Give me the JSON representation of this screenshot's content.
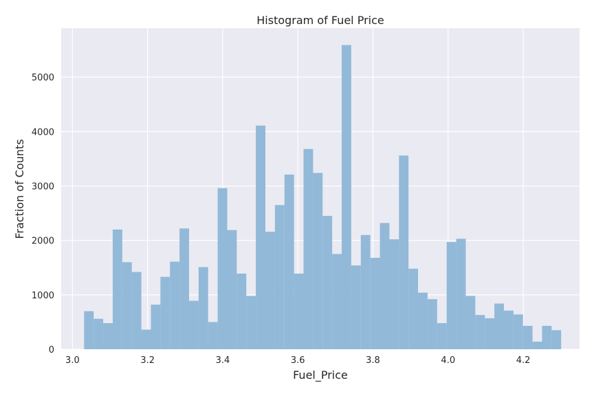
{
  "chart_data": {
    "type": "bar",
    "title": "Histogram of Fuel Price",
    "xlabel": "Fuel_Price",
    "ylabel": "Fraction of Counts",
    "xlim": [
      2.97,
      4.35
    ],
    "ylim": [
      0,
      5900
    ],
    "xticks": [
      "3.0",
      "3.2",
      "3.4",
      "3.6",
      "3.8",
      "4.0",
      "4.2"
    ],
    "yticks": [
      "0",
      "1000",
      "2000",
      "3000",
      "4000",
      "5000"
    ],
    "grid": true,
    "bar_color": "#92b9d8",
    "background_color": "#eaeaf2",
    "bin_start": 3.031,
    "bin_end": 4.301,
    "values": [
      700,
      560,
      480,
      2200,
      1600,
      1420,
      360,
      820,
      1330,
      1610,
      2220,
      890,
      1510,
      500,
      2960,
      2190,
      1390,
      980,
      4110,
      2160,
      2650,
      3210,
      1390,
      3680,
      3240,
      2450,
      1750,
      5590,
      1540,
      2100,
      1680,
      2320,
      2020,
      3560,
      1480,
      1040,
      920,
      480,
      1970,
      2030,
      980,
      630,
      570,
      840,
      710,
      640,
      430,
      140,
      430,
      350
    ]
  }
}
